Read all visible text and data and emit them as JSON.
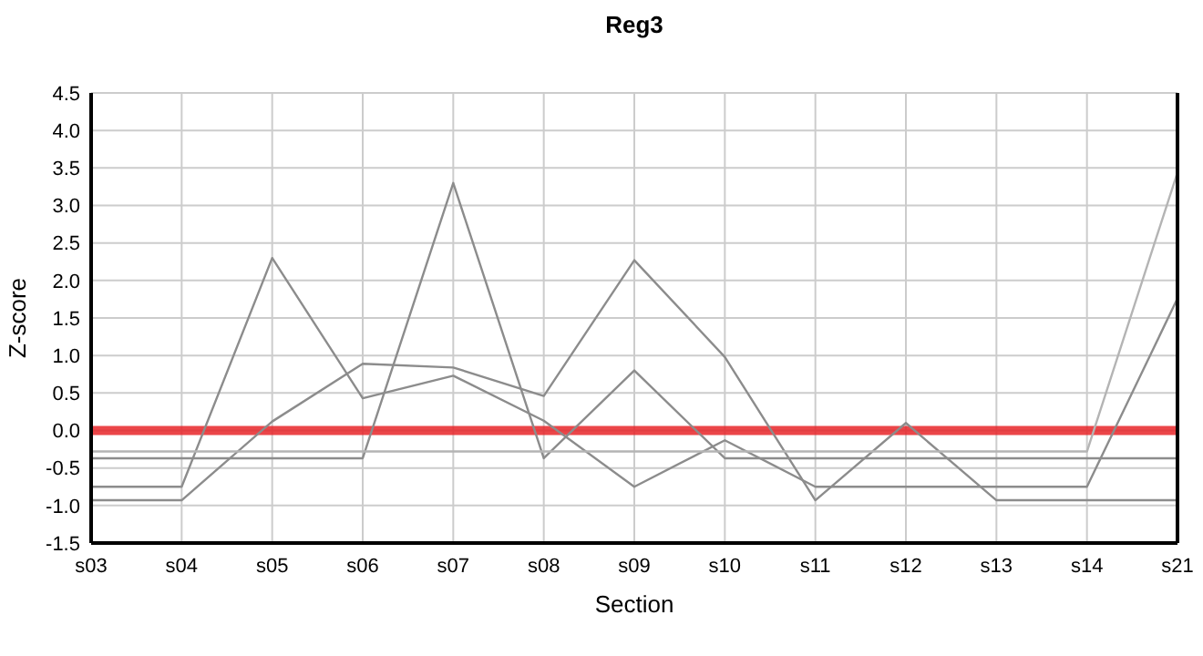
{
  "chart_data": {
    "type": "line",
    "title": "Reg3",
    "xlabel": "Section",
    "ylabel": "Z-score",
    "categories": [
      "s03",
      "s04",
      "s05",
      "s06",
      "s07",
      "s08",
      "s09",
      "s10",
      "s11",
      "s12",
      "s13",
      "s14",
      "s21"
    ],
    "series": [
      {
        "color": "#8c8c8c",
        "values": [
          -0.75,
          -0.75,
          2.3,
          0.43,
          0.73,
          0.13,
          -0.75,
          -0.13,
          -0.75,
          -0.75,
          -0.75,
          -0.75,
          1.76
        ]
      },
      {
        "color": "#8c8c8c",
        "values": [
          -0.93,
          -0.93,
          0.12,
          0.89,
          0.84,
          0.46,
          2.27,
          0.98,
          -0.93,
          0.1,
          -0.93,
          -0.93,
          -0.93
        ]
      },
      {
        "color": "#8c8c8c",
        "values": [
          -0.37,
          -0.37,
          -0.37,
          -0.37,
          3.3,
          -0.37,
          0.8,
          -0.37,
          -0.37,
          -0.37,
          -0.37,
          -0.37,
          -0.37
        ]
      },
      {
        "color": "#b4b4b4",
        "values": [
          -0.28,
          -0.28,
          -0.28,
          -0.28,
          -0.28,
          -0.28,
          -0.28,
          -0.28,
          -0.28,
          -0.28,
          -0.28,
          -0.28,
          3.44
        ]
      }
    ],
    "ylim": [
      -1.5,
      4.5
    ],
    "yticks": [
      {
        "value": -1.5,
        "label": "-1.5"
      },
      {
        "value": -1,
        "label": "-1.0"
      },
      {
        "value": -0.5,
        "label": "-0.5"
      },
      {
        "value": 0,
        "label": "0.0"
      },
      {
        "value": 0.5,
        "label": "0.5"
      },
      {
        "value": 1,
        "label": "1.0"
      },
      {
        "value": 1.5,
        "label": "1.5"
      },
      {
        "value": 2,
        "label": "2.0"
      },
      {
        "value": 2.5,
        "label": "2.5"
      },
      {
        "value": 3,
        "label": "3.0"
      },
      {
        "value": 3.5,
        "label": "3.5"
      },
      {
        "value": 4,
        "label": "4.0"
      },
      {
        "value": 4.5,
        "label": "4.5"
      }
    ],
    "ref_lines": [
      {
        "axis": "y",
        "value": 0,
        "color": "#e8262a"
      }
    ],
    "grid": true,
    "marker": "none",
    "line_style": "solid"
  }
}
